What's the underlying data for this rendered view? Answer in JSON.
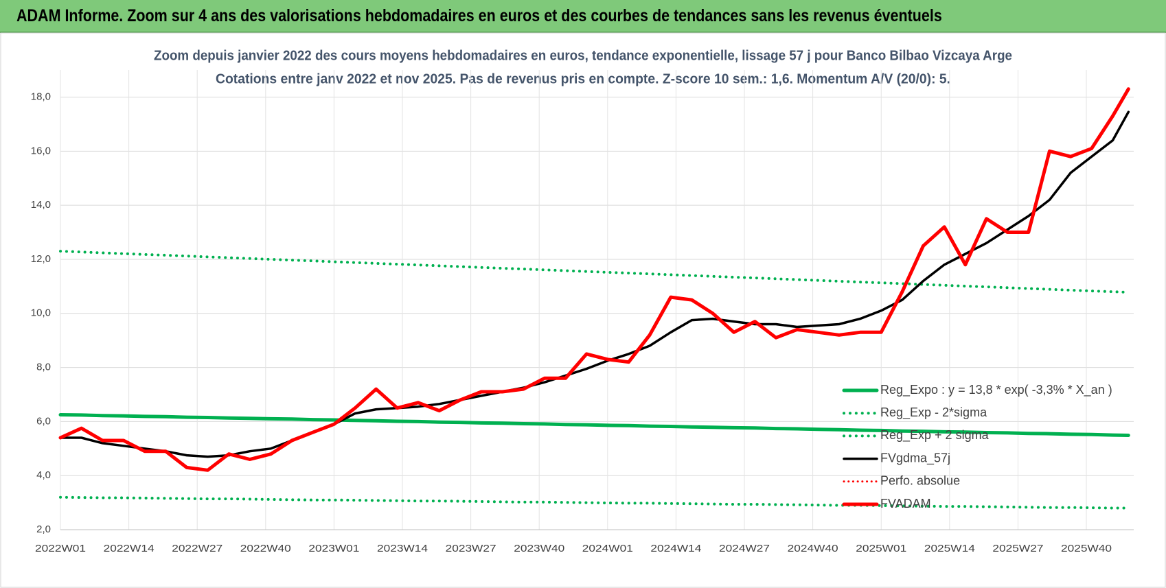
{
  "chart_data": {
    "type": "line",
    "title": "ADAM Informe. Zoom sur 4 ans des valorisations hebdomadaires en euros et des courbes de tendances sans les revenus éventuels",
    "subtitle": "Zoom depuis janvier 2022 des cours moyens hebdomadaires en euros, tendance exponentielle, lissage 57 j pour Banco Bilbao Vizcaya Arge",
    "subtitle2": "Cotations entre janv 2022 et nov 2025. Pas de revenus pris en compte. Z-score 10 sem.: 1,6. Momentum A/V (20/0): 5.",
    "x": [
      0,
      4,
      8,
      12,
      16,
      20,
      24,
      28,
      32,
      36,
      40,
      44,
      48,
      52,
      56,
      60,
      64,
      68,
      72,
      76,
      80,
      84,
      88,
      92,
      96,
      100,
      104,
      108,
      112,
      116,
      120,
      124,
      128,
      132,
      136,
      140,
      144,
      148,
      152,
      156,
      160,
      164,
      168,
      172,
      176,
      180,
      184,
      188,
      192,
      196,
      200,
      203
    ],
    "xlim": [
      0,
      204
    ],
    "xticks": [
      {
        "value": 0,
        "label": "2022W01"
      },
      {
        "value": 13,
        "label": "2022W14"
      },
      {
        "value": 26,
        "label": "2022W27"
      },
      {
        "value": 39,
        "label": "2022W40"
      },
      {
        "value": 52,
        "label": "2023W01"
      },
      {
        "value": 65,
        "label": "2023W14"
      },
      {
        "value": 78,
        "label": "2023W27"
      },
      {
        "value": 91,
        "label": "2023W40"
      },
      {
        "value": 104,
        "label": "2024W01"
      },
      {
        "value": 117,
        "label": "2024W14"
      },
      {
        "value": 130,
        "label": "2024W27"
      },
      {
        "value": 143,
        "label": "2024W40"
      },
      {
        "value": 156,
        "label": "2025W01"
      },
      {
        "value": 169,
        "label": "2025W14"
      },
      {
        "value": 182,
        "label": "2025W27"
      },
      {
        "value": 195,
        "label": "2025W40"
      }
    ],
    "ylim": [
      2,
      18.8
    ],
    "yticks": [
      {
        "value": 2,
        "label": "2,0"
      },
      {
        "value": 4,
        "label": "4,0"
      },
      {
        "value": 6,
        "label": "6,0"
      },
      {
        "value": 8,
        "label": "8,0"
      },
      {
        "value": 10,
        "label": "10,0"
      },
      {
        "value": 12,
        "label": "12,0"
      },
      {
        "value": 14,
        "label": "14,0"
      },
      {
        "value": 16,
        "label": "16,0"
      },
      {
        "value": 18,
        "label": "18,0"
      }
    ],
    "grid": true,
    "legend": "right",
    "series": [
      {
        "name": "Reg_Expo : y = 13,8 * exp( -3,3% *  X_an )",
        "color": "#00b050",
        "dash": "solid",
        "width": 5,
        "values": [
          6.25,
          6.24,
          6.22,
          6.21,
          6.19,
          6.18,
          6.16,
          6.15,
          6.13,
          6.12,
          6.1,
          6.09,
          6.07,
          6.06,
          6.04,
          6.03,
          6.01,
          6.0,
          5.98,
          5.97,
          5.95,
          5.94,
          5.92,
          5.91,
          5.89,
          5.88,
          5.86,
          5.85,
          5.83,
          5.82,
          5.8,
          5.79,
          5.77,
          5.76,
          5.74,
          5.73,
          5.71,
          5.7,
          5.68,
          5.67,
          5.65,
          5.64,
          5.62,
          5.61,
          5.59,
          5.58,
          5.56,
          5.55,
          5.53,
          5.52,
          5.5,
          5.49
        ]
      },
      {
        "name": "Reg_Exp - 2*sigma",
        "color": "#00b050",
        "dash": "dotted",
        "width": 4,
        "values": [
          3.2,
          3.19,
          3.18,
          3.18,
          3.17,
          3.16,
          3.15,
          3.14,
          3.14,
          3.13,
          3.12,
          3.11,
          3.1,
          3.1,
          3.09,
          3.08,
          3.07,
          3.06,
          3.06,
          3.05,
          3.04,
          3.03,
          3.02,
          3.02,
          3.01,
          3.0,
          2.99,
          2.98,
          2.98,
          2.97,
          2.96,
          2.95,
          2.94,
          2.94,
          2.93,
          2.92,
          2.91,
          2.9,
          2.9,
          2.89,
          2.88,
          2.87,
          2.86,
          2.86,
          2.85,
          2.84,
          2.83,
          2.82,
          2.82,
          2.81,
          2.8,
          2.8
        ]
      },
      {
        "name": "Reg_Exp + 2 sigma",
        "color": "#00b050",
        "dash": "dotted",
        "width": 4,
        "values": [
          12.3,
          12.27,
          12.24,
          12.21,
          12.18,
          12.15,
          12.12,
          12.09,
          12.06,
          12.03,
          12.0,
          11.97,
          11.94,
          11.91,
          11.88,
          11.85,
          11.82,
          11.79,
          11.76,
          11.73,
          11.7,
          11.67,
          11.64,
          11.61,
          11.58,
          11.55,
          11.52,
          11.49,
          11.46,
          11.43,
          11.4,
          11.37,
          11.34,
          11.31,
          11.28,
          11.25,
          11.22,
          11.19,
          11.16,
          11.13,
          11.1,
          11.07,
          11.04,
          11.01,
          10.98,
          10.95,
          10.92,
          10.89,
          10.86,
          10.83,
          10.8,
          10.78
        ]
      },
      {
        "name": "FVgdma_57j",
        "color": "#000000",
        "dash": "solid",
        "width": 3.5,
        "values": [
          5.4,
          5.4,
          5.2,
          5.1,
          5.0,
          4.9,
          4.75,
          4.7,
          4.75,
          4.9,
          5.0,
          5.3,
          5.6,
          5.9,
          6.3,
          6.45,
          6.5,
          6.55,
          6.65,
          6.8,
          6.95,
          7.1,
          7.25,
          7.45,
          7.7,
          7.95,
          8.25,
          8.5,
          8.8,
          9.3,
          9.75,
          9.8,
          9.7,
          9.6,
          9.6,
          9.5,
          9.55,
          9.6,
          9.8,
          10.1,
          10.5,
          11.2,
          11.8,
          12.2,
          12.6,
          13.1,
          13.6,
          14.2,
          15.2,
          15.8,
          16.4,
          17.45
        ]
      },
      {
        "name": "Perfo. absolue",
        "color": "#ff0000",
        "dash": "dotted",
        "width": 3,
        "values": [
          null,
          null,
          null,
          null,
          null,
          null,
          null,
          null,
          null,
          null,
          null,
          null,
          null,
          null,
          null,
          null,
          null,
          null,
          null,
          null,
          null,
          null,
          null,
          null,
          null,
          null,
          null,
          null,
          null,
          null,
          null,
          null,
          null,
          null,
          null,
          null,
          null,
          null,
          null,
          null,
          null,
          null,
          null,
          null,
          null,
          null,
          null,
          null,
          null,
          null,
          null,
          null
        ]
      },
      {
        "name": "FVADAM",
        "color": "#ff0000",
        "dash": "solid",
        "width": 5,
        "values": [
          5.4,
          5.75,
          5.3,
          5.3,
          4.9,
          4.9,
          4.3,
          4.2,
          4.8,
          4.6,
          4.8,
          5.3,
          5.6,
          5.9,
          6.5,
          7.2,
          6.5,
          6.7,
          6.4,
          6.8,
          7.1,
          7.1,
          7.2,
          7.6,
          7.6,
          8.5,
          8.3,
          8.2,
          9.2,
          10.6,
          10.5,
          10.0,
          9.3,
          9.7,
          9.1,
          9.4,
          9.3,
          9.2,
          9.3,
          9.3,
          10.8,
          12.5,
          13.2,
          11.8,
          13.5,
          13.0,
          13.0,
          16.0,
          15.8,
          16.1,
          17.3,
          18.3
        ]
      }
    ]
  }
}
